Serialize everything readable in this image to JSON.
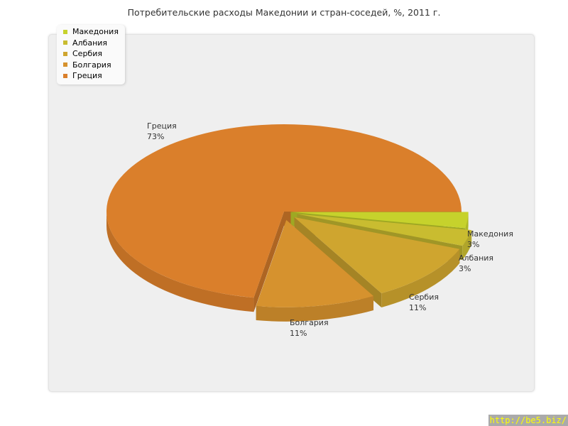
{
  "chart_data": {
    "type": "pie",
    "title": "Потребительские расходы Македонии и стран-соседей, %, 2011 г.",
    "three_d": true,
    "legend_position": "top-left",
    "categories": [
      "Македония",
      "Албания",
      "Сербия",
      "Болгария",
      "Греция"
    ],
    "values": [
      3,
      3,
      11,
      11,
      73
    ],
    "labels": [
      "3%",
      "3%",
      "11%",
      "11%",
      "73%"
    ],
    "colors": [
      "#c6d22c",
      "#c9bc30",
      "#cfa52f",
      "#d6922e",
      "#da7f2b"
    ]
  },
  "watermark": "http://be5.biz/"
}
